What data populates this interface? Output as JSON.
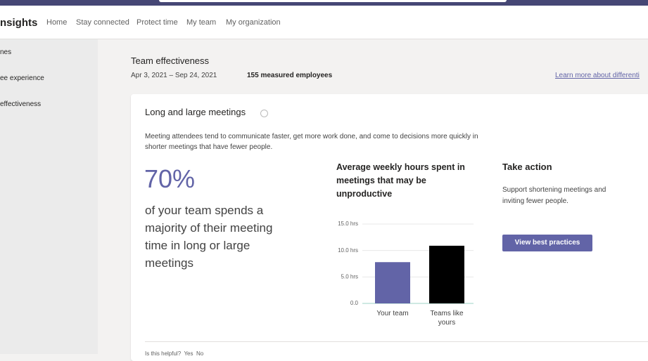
{
  "header": {
    "app_title": "nsights",
    "nav": [
      "Home",
      "Stay connected",
      "Protect time",
      "My team",
      "My organization"
    ],
    "active_nav": 3
  },
  "sidebar": {
    "items": [
      "nes",
      "ee experience",
      "effectiveness"
    ],
    "active": 2
  },
  "page": {
    "title": "Team effectiveness",
    "date_range": "Apr 3, 2021 – Sep 24, 2021",
    "employees": "155 measured employees",
    "link": "Learn more about differenti"
  },
  "card": {
    "title": "Long and large meetings",
    "description": "Meeting attendees tend to communicate faster, get more work done, and come to decisions more quickly in shorter meetings that have fewer people.",
    "stat": "70%",
    "stat_text": "of your team spends a majority of their meeting time in long or large meetings",
    "action_title": "Take action",
    "action_text": "Support shortening meetings and inviting fewer people.",
    "button": "View best practices",
    "footer": "Is this helpful?  Yes  No"
  },
  "chart_data": {
    "type": "bar",
    "title": "Average weekly hours spent in meetings that may be unproductive",
    "categories": [
      "Your team",
      "Teams like yours"
    ],
    "values": [
      7.8,
      10.9
    ],
    "colors": [
      "#6264a7",
      "#000000"
    ],
    "ylim": [
      0,
      15
    ],
    "yticks": [
      {
        "value": 0,
        "label": "0.0"
      },
      {
        "value": 5,
        "label": "5.0 hrs"
      },
      {
        "value": 10,
        "label": "10.0 hrs"
      },
      {
        "value": 15,
        "label": "15.0 hrs"
      }
    ],
    "grid": true
  }
}
